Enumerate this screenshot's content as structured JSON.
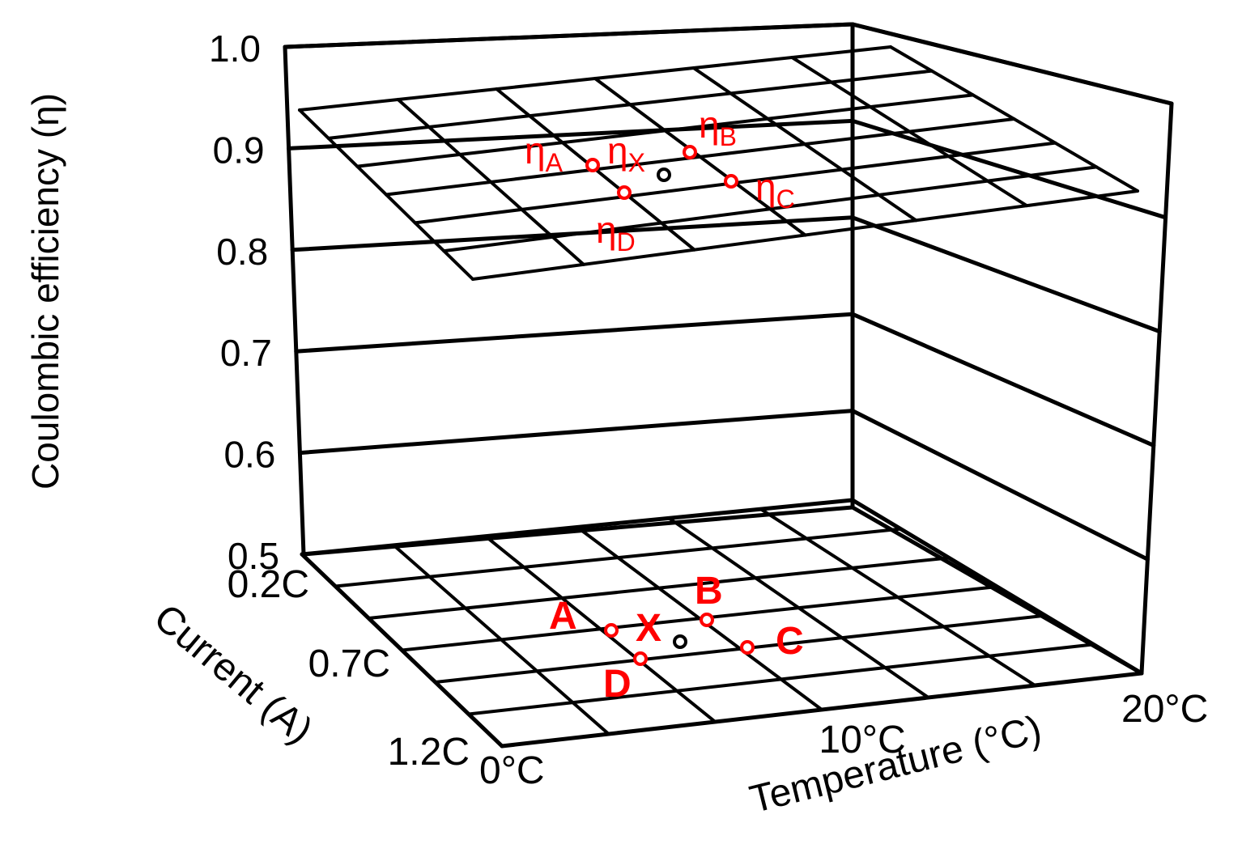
{
  "chart_data": {
    "type": "3d-surface",
    "zlabel": "Coulombic efficiency (η)",
    "xlabel": "Temperature (°C)",
    "ylabel": "Current (A)",
    "z_ticks": [
      "1.0",
      "0.9",
      "0.8",
      "0.7",
      "0.6",
      "0.5"
    ],
    "x_ticks": [
      "0°C",
      "10°C",
      "20°C"
    ],
    "y_ticks": [
      "0.2C",
      "0.7C",
      "1.2C"
    ],
    "zlim": [
      0.5,
      1.0
    ],
    "grid": true,
    "accent_color": "#ff0000",
    "floor_points": [
      {
        "label": "A"
      },
      {
        "label": "B"
      },
      {
        "label": "C"
      },
      {
        "label": "D"
      },
      {
        "label": "X"
      }
    ],
    "surface_points": [
      {
        "symbol": "η",
        "sub": "A"
      },
      {
        "symbol": "η",
        "sub": "B"
      },
      {
        "symbol": "η",
        "sub": "C"
      },
      {
        "symbol": "η",
        "sub": "D"
      },
      {
        "symbol": "η",
        "sub": "X"
      }
    ]
  }
}
